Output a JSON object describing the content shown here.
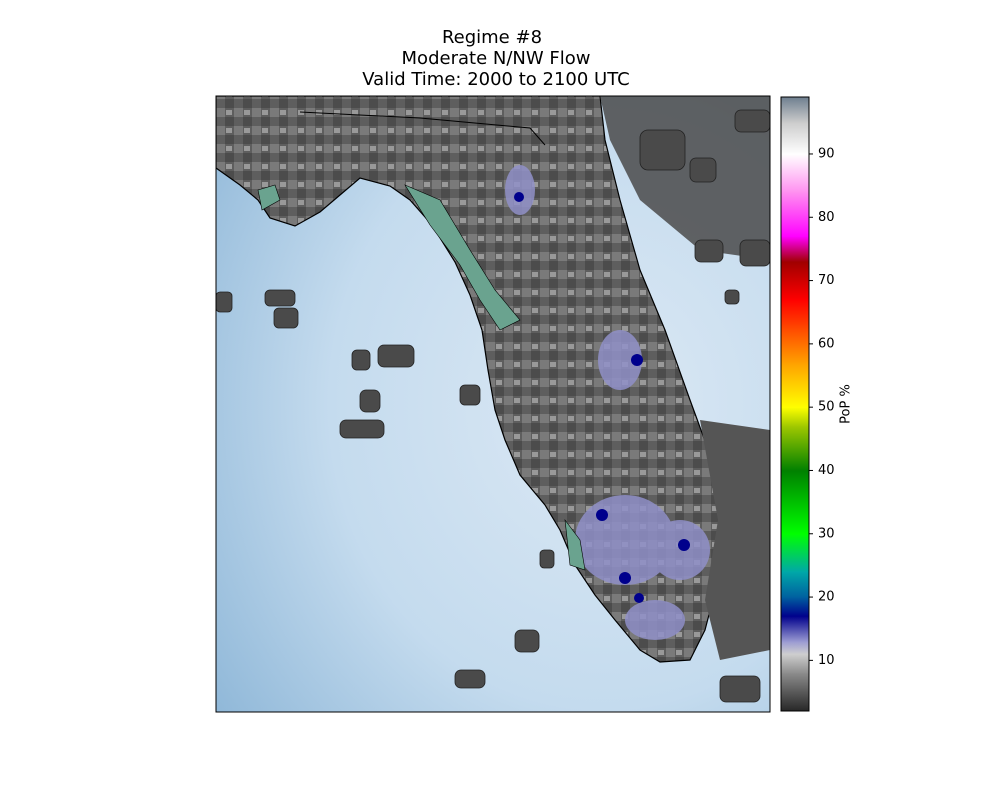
{
  "map": {
    "title": [
      "Regime #8",
      "Moderate N/NW Flow",
      "Valid Time: 2000 to 2100 UTC"
    ],
    "colorbar": {
      "label": "PoP %",
      "lim": [
        2,
        99
      ],
      "ticks": [
        10,
        20,
        30,
        40,
        50,
        60,
        70,
        80,
        90
      ],
      "colormap": [
        {
          "value": 2,
          "color": "#262626"
        },
        {
          "value": 8,
          "color": "#8c8c8c"
        },
        {
          "value": 11,
          "color": "#cfcfcf"
        },
        {
          "value": 13,
          "color": "#9a9ad2"
        },
        {
          "value": 17,
          "color": "#00008c"
        },
        {
          "value": 20,
          "color": "#0060a0"
        },
        {
          "value": 24,
          "color": "#00a8a8"
        },
        {
          "value": 30,
          "color": "#00ff00"
        },
        {
          "value": 40,
          "color": "#008000"
        },
        {
          "value": 47,
          "color": "#a0c800"
        },
        {
          "value": 50,
          "color": "#ffff00"
        },
        {
          "value": 57,
          "color": "#ffa000"
        },
        {
          "value": 63,
          "color": "#ff4000"
        },
        {
          "value": 67,
          "color": "#ff0000"
        },
        {
          "value": 73,
          "color": "#a00000"
        },
        {
          "value": 77,
          "color": "#ff00ff"
        },
        {
          "value": 84,
          "color": "#ff90f0"
        },
        {
          "value": 90,
          "color": "#ffffff"
        },
        {
          "value": 95,
          "color": "#cccccc"
        },
        {
          "value": 99,
          "color": "#6e7f8f"
        }
      ]
    }
  }
}
